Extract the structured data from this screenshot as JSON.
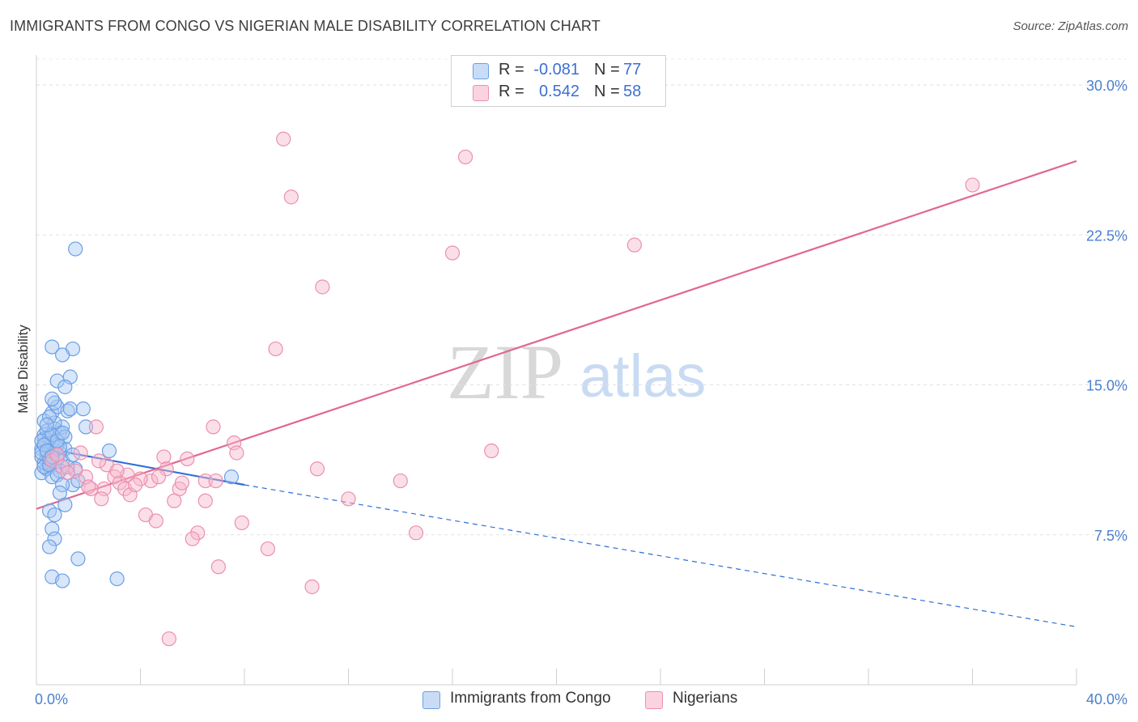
{
  "header": {
    "title": "IMMIGRANTS FROM CONGO VS NIGERIAN MALE DISABILITY CORRELATION CHART",
    "source": "Source: ZipAtlas.com"
  },
  "watermark": {
    "zip": "ZIP",
    "atlas": "atlas"
  },
  "legend": {
    "rows": [
      {
        "r_label": "R =",
        "r_value": "-0.081",
        "n_label": "N =",
        "n_value": "77",
        "color": "#a9c8f2"
      },
      {
        "r_label": "R =",
        "r_value": "0.542",
        "n_label": "N =",
        "n_value": "58",
        "color": "#f7b9cc"
      }
    ]
  },
  "bottom_legend": {
    "items": [
      {
        "label": "Immigrants from Congo",
        "color": "#a9c8f2"
      },
      {
        "label": "Nigerians",
        "color": "#f7b9cc"
      }
    ]
  },
  "chart_data": {
    "type": "scatter",
    "title": "IMMIGRANTS FROM CONGO VS NIGERIAN MALE DISABILITY CORRELATION CHART",
    "xlabel": "",
    "ylabel": "Male Disability",
    "xlim": [
      0,
      40
    ],
    "ylim": [
      0,
      31.5
    ],
    "x_ticks": [
      0,
      40
    ],
    "x_tick_labels": [
      "0.0%",
      "40.0%"
    ],
    "y_ticks": [
      7.5,
      15,
      22.5,
      30
    ],
    "y_tick_labels": [
      "7.5%",
      "15.0%",
      "22.5%",
      "30.0%"
    ],
    "grid": true,
    "legend_position": "top-center",
    "series": [
      {
        "name": "Immigrants from Congo",
        "color": "#6a9fe6",
        "fill": "#a9c8f2",
        "line_color": "#2f6fd6",
        "trend": {
          "x0": 0,
          "y0": 11.9,
          "x1": 8,
          "y1": 10.0,
          "dash_to_x": 40,
          "dash_to_y": 2.9
        },
        "points": [
          [
            0.2,
            11.8
          ],
          [
            0.3,
            12.5
          ],
          [
            0.4,
            11.2
          ],
          [
            0.5,
            10.9
          ],
          [
            0.3,
            13.2
          ],
          [
            0.6,
            12.1
          ],
          [
            0.4,
            11.5
          ],
          [
            0.7,
            12.8
          ],
          [
            0.2,
            10.6
          ],
          [
            0.5,
            11.9
          ],
          [
            0.8,
            11.3
          ],
          [
            0.3,
            12.3
          ],
          [
            0.6,
            13.6
          ],
          [
            0.9,
            12.6
          ],
          [
            0.4,
            10.8
          ],
          [
            0.2,
            11.4
          ],
          [
            0.7,
            11.7
          ],
          [
            0.5,
            12.4
          ],
          [
            0.8,
            13.9
          ],
          [
            1.0,
            12.9
          ],
          [
            0.3,
            11.1
          ],
          [
            0.6,
            10.4
          ],
          [
            0.9,
            11.6
          ],
          [
            0.4,
            12.7
          ],
          [
            0.2,
            12.2
          ],
          [
            0.7,
            13.1
          ],
          [
            1.1,
            11.8
          ],
          [
            0.5,
            13.4
          ],
          [
            0.8,
            12.0
          ],
          [
            0.3,
            10.9
          ],
          [
            1.0,
            11.2
          ],
          [
            0.6,
            12.5
          ],
          [
            0.4,
            13.0
          ],
          [
            0.9,
            10.7
          ],
          [
            0.2,
            11.6
          ],
          [
            1.2,
            13.7
          ],
          [
            0.7,
            14.1
          ],
          [
            1.1,
            12.4
          ],
          [
            0.5,
            11.0
          ],
          [
            0.8,
            10.5
          ],
          [
            0.6,
            16.9
          ],
          [
            1.4,
            16.8
          ],
          [
            1.0,
            16.5
          ],
          [
            1.3,
            15.4
          ],
          [
            0.8,
            15.2
          ],
          [
            1.1,
            14.9
          ],
          [
            0.6,
            14.3
          ],
          [
            1.3,
            13.8
          ],
          [
            1.8,
            13.8
          ],
          [
            1.9,
            12.9
          ],
          [
            1.4,
            11.5
          ],
          [
            1.5,
            10.8
          ],
          [
            1.4,
            10.0
          ],
          [
            1.6,
            10.2
          ],
          [
            1.2,
            10.9
          ],
          [
            1.0,
            10.0
          ],
          [
            0.9,
            9.6
          ],
          [
            1.1,
            9.0
          ],
          [
            0.5,
            8.7
          ],
          [
            0.7,
            8.5
          ],
          [
            0.6,
            7.8
          ],
          [
            0.7,
            7.3
          ],
          [
            0.5,
            6.9
          ],
          [
            1.6,
            6.3
          ],
          [
            0.6,
            5.4
          ],
          [
            1.0,
            5.2
          ],
          [
            3.1,
            5.3
          ],
          [
            2.8,
            11.7
          ],
          [
            7.5,
            10.4
          ],
          [
            1.5,
            21.8
          ],
          [
            0.3,
            12.0
          ],
          [
            0.5,
            11.3
          ],
          [
            0.9,
            11.9
          ],
          [
            0.4,
            11.7
          ],
          [
            0.6,
            11.4
          ],
          [
            0.8,
            12.2
          ],
          [
            1.0,
            12.6
          ]
        ]
      },
      {
        "name": "Nigerians",
        "color": "#ec8fae",
        "fill": "#f7b9cc",
        "line_color": "#e06890",
        "trend": {
          "x0": 0,
          "y0": 8.8,
          "x1": 40,
          "y1": 26.2
        },
        "points": [
          [
            9.5,
            27.3
          ],
          [
            16.5,
            26.4
          ],
          [
            9.8,
            24.4
          ],
          [
            36.0,
            25.0
          ],
          [
            23.0,
            22.0
          ],
          [
            16.0,
            21.6
          ],
          [
            11.0,
            19.9
          ],
          [
            9.2,
            16.8
          ],
          [
            2.3,
            12.9
          ],
          [
            6.8,
            12.9
          ],
          [
            7.6,
            12.1
          ],
          [
            17.5,
            11.7
          ],
          [
            7.7,
            11.6
          ],
          [
            4.9,
            11.4
          ],
          [
            5.8,
            11.3
          ],
          [
            1.7,
            11.6
          ],
          [
            2.7,
            11.0
          ],
          [
            0.6,
            11.2
          ],
          [
            1.0,
            10.9
          ],
          [
            1.5,
            10.7
          ],
          [
            5.0,
            10.8
          ],
          [
            3.5,
            10.5
          ],
          [
            10.8,
            10.8
          ],
          [
            14.0,
            10.2
          ],
          [
            6.5,
            10.2
          ],
          [
            6.9,
            10.2
          ],
          [
            4.4,
            10.2
          ],
          [
            4.0,
            10.3
          ],
          [
            3.0,
            10.4
          ],
          [
            1.9,
            10.4
          ],
          [
            3.2,
            10.1
          ],
          [
            3.4,
            9.8
          ],
          [
            2.6,
            9.8
          ],
          [
            2.1,
            9.8
          ],
          [
            3.6,
            9.5
          ],
          [
            5.5,
            9.8
          ],
          [
            2.5,
            9.3
          ],
          [
            5.3,
            9.2
          ],
          [
            6.5,
            9.2
          ],
          [
            12.0,
            9.3
          ],
          [
            4.2,
            8.5
          ],
          [
            4.6,
            8.2
          ],
          [
            7.9,
            8.1
          ],
          [
            6.2,
            7.6
          ],
          [
            14.6,
            7.6
          ],
          [
            6.0,
            7.3
          ],
          [
            8.9,
            6.8
          ],
          [
            7.0,
            5.9
          ],
          [
            10.6,
            4.9
          ],
          [
            5.1,
            2.3
          ],
          [
            1.2,
            10.6
          ],
          [
            0.8,
            11.5
          ],
          [
            2.0,
            9.9
          ],
          [
            3.8,
            10.0
          ],
          [
            4.7,
            10.4
          ],
          [
            5.6,
            10.1
          ],
          [
            3.1,
            10.7
          ],
          [
            2.4,
            11.2
          ]
        ]
      }
    ]
  }
}
